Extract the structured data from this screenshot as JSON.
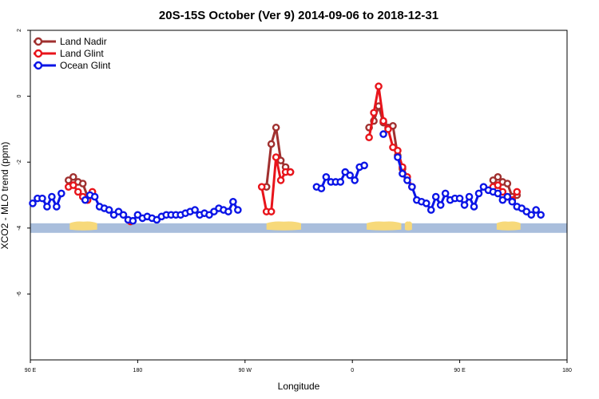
{
  "chart_data": {
    "type": "line",
    "title": "20S-15S October (Ver 9)   2014-09-06 to 2018-12-31",
    "xlabel": "Longitude",
    "ylabel": "XCO2 - MLO trend (ppm)",
    "x_ticks": [
      {
        "value": 90,
        "label": "90 E"
      },
      {
        "value": 180,
        "label": "180"
      },
      {
        "value": 270,
        "label": "90 W"
      },
      {
        "value": 360,
        "label": "0"
      },
      {
        "value": 450,
        "label": "90 E"
      },
      {
        "value": 540,
        "label": "180"
      }
    ],
    "y_ticks": [
      {
        "value": 2,
        "label": "2"
      },
      {
        "value": 0,
        "label": "0"
      },
      {
        "value": -2,
        "label": "-2"
      },
      {
        "value": -4,
        "label": "-4"
      },
      {
        "value": -6,
        "label": "-6"
      }
    ],
    "xlim": [
      90,
      540
    ],
    "ylim": [
      -8,
      2
    ],
    "grid": false,
    "legend_position": "top-left",
    "surface_band": {
      "y": -4,
      "ocean_color": "#a9bedc",
      "land_color": "#f7d97a",
      "land_segments": [
        [
          123,
          146
        ],
        [
          288,
          317
        ],
        [
          372,
          401
        ],
        [
          404,
          410
        ],
        [
          481,
          501
        ]
      ]
    },
    "series": [
      {
        "name": "Land Nadir",
        "color": "#a0302f",
        "points": [
          [
            122,
            -2.55
          ],
          [
            126,
            -2.45
          ],
          [
            130,
            -2.6
          ],
          [
            134,
            -2.65
          ],
          [
            138,
            -3.05
          ],
          [
            142,
            -3.0
          ],
          [
            288,
            -2.75
          ],
          [
            292,
            -1.45
          ],
          [
            296,
            -0.95
          ],
          [
            300,
            -1.95
          ],
          [
            304,
            -2.15
          ],
          [
            308,
            -2.3
          ],
          [
            374,
            -0.95
          ],
          [
            378,
            -0.75
          ],
          [
            382,
            -0.3
          ],
          [
            386,
            -0.8
          ],
          [
            390,
            -0.95
          ],
          [
            394,
            -0.9
          ],
          [
            398,
            -1.8
          ],
          [
            402,
            -2.2
          ],
          [
            478,
            -2.55
          ],
          [
            482,
            -2.45
          ],
          [
            486,
            -2.6
          ],
          [
            490,
            -2.65
          ],
          [
            494,
            -3.05
          ],
          [
            498,
            -3.0
          ]
        ]
      },
      {
        "name": "Land Glint",
        "color": "#e8141b",
        "points": [
          [
            122,
            -2.75
          ],
          [
            126,
            -2.7
          ],
          [
            130,
            -2.9
          ],
          [
            134,
            -3.05
          ],
          [
            138,
            -3.15
          ],
          [
            142,
            -2.9
          ],
          [
            174,
            -3.8
          ],
          [
            284,
            -2.75
          ],
          [
            288,
            -3.5
          ],
          [
            292,
            -3.5
          ],
          [
            296,
            -1.85
          ],
          [
            300,
            -2.55
          ],
          [
            304,
            -2.3
          ],
          [
            308,
            -2.3
          ],
          [
            374,
            -1.25
          ],
          [
            378,
            -0.5
          ],
          [
            382,
            0.3
          ],
          [
            386,
            -0.75
          ],
          [
            390,
            -1.0
          ],
          [
            394,
            -1.55
          ],
          [
            398,
            -1.65
          ],
          [
            402,
            -2.15
          ],
          [
            406,
            -2.45
          ],
          [
            410,
            -2.75
          ],
          [
            478,
            -2.75
          ],
          [
            482,
            -2.7
          ],
          [
            486,
            -2.9
          ],
          [
            490,
            -3.05
          ],
          [
            494,
            -3.15
          ],
          [
            498,
            -2.9
          ]
        ]
      },
      {
        "name": "Ocean Glint",
        "color": "#0a14e6",
        "points": [
          [
            92,
            -3.25
          ],
          [
            96,
            -3.1
          ],
          [
            100,
            -3.1
          ],
          [
            104,
            -3.35
          ],
          [
            108,
            -3.05
          ],
          [
            112,
            -3.35
          ],
          [
            116,
            -2.95
          ],
          [
            136,
            -3.15
          ],
          [
            140,
            -3.0
          ],
          [
            144,
            -3.05
          ],
          [
            148,
            -3.35
          ],
          [
            152,
            -3.4
          ],
          [
            156,
            -3.45
          ],
          [
            160,
            -3.6
          ],
          [
            164,
            -3.5
          ],
          [
            168,
            -3.6
          ],
          [
            172,
            -3.75
          ],
          [
            176,
            -3.78
          ],
          [
            180,
            -3.6
          ],
          [
            184,
            -3.7
          ],
          [
            188,
            -3.65
          ],
          [
            192,
            -3.7
          ],
          [
            196,
            -3.75
          ],
          [
            200,
            -3.65
          ],
          [
            204,
            -3.6
          ],
          [
            208,
            -3.6
          ],
          [
            212,
            -3.6
          ],
          [
            216,
            -3.6
          ],
          [
            220,
            -3.55
          ],
          [
            224,
            -3.5
          ],
          [
            228,
            -3.45
          ],
          [
            232,
            -3.6
          ],
          [
            236,
            -3.55
          ],
          [
            240,
            -3.6
          ],
          [
            244,
            -3.5
          ],
          [
            248,
            -3.4
          ],
          [
            252,
            -3.45
          ],
          [
            256,
            -3.5
          ],
          [
            260,
            -3.2
          ],
          [
            264,
            -3.45
          ],
          [
            330,
            -2.75
          ],
          [
            334,
            -2.8
          ],
          [
            338,
            -2.45
          ],
          [
            342,
            -2.6
          ],
          [
            346,
            -2.6
          ],
          [
            350,
            -2.6
          ],
          [
            354,
            -2.3
          ],
          [
            358,
            -2.4
          ],
          [
            362,
            -2.55
          ],
          [
            366,
            -2.15
          ],
          [
            370,
            -2.1
          ],
          [
            386,
            -1.15
          ],
          [
            398,
            -1.85
          ],
          [
            402,
            -2.35
          ],
          [
            406,
            -2.55
          ],
          [
            410,
            -2.75
          ],
          [
            414,
            -3.15
          ],
          [
            418,
            -3.2
          ],
          [
            422,
            -3.25
          ],
          [
            426,
            -3.45
          ],
          [
            430,
            -3.05
          ],
          [
            434,
            -3.3
          ],
          [
            438,
            -2.95
          ],
          [
            442,
            -3.15
          ],
          [
            446,
            -3.1
          ],
          [
            450,
            -3.1
          ],
          [
            454,
            -3.3
          ],
          [
            458,
            -3.05
          ],
          [
            462,
            -3.35
          ],
          [
            466,
            -2.95
          ],
          [
            470,
            -2.75
          ],
          [
            474,
            -2.85
          ],
          [
            478,
            -2.9
          ],
          [
            482,
            -2.95
          ],
          [
            486,
            -3.15
          ],
          [
            490,
            -3.05
          ],
          [
            494,
            -3.2
          ],
          [
            498,
            -3.35
          ],
          [
            502,
            -3.4
          ],
          [
            506,
            -3.5
          ],
          [
            510,
            -3.6
          ],
          [
            514,
            -3.45
          ],
          [
            518,
            -3.6
          ]
        ]
      }
    ]
  }
}
